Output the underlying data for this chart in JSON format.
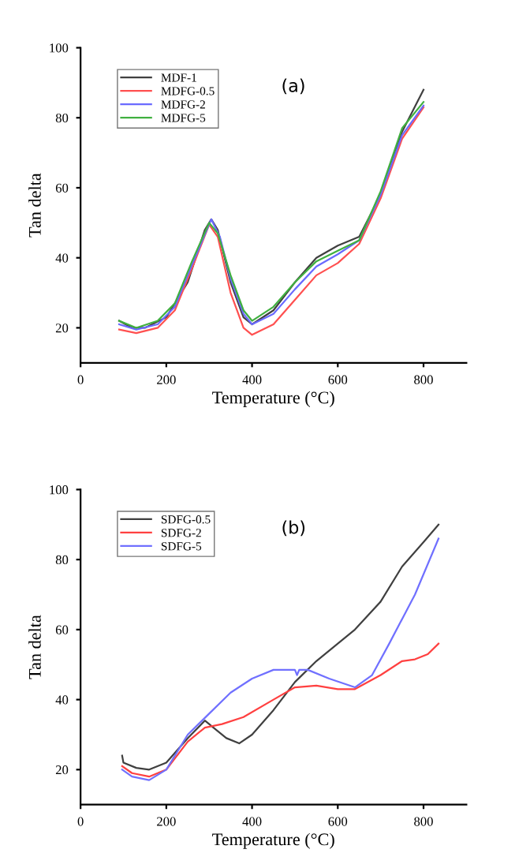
{
  "chart_data": [
    {
      "type": "line",
      "xlabel": "Temperature (°C)",
      "ylabel": "Tan delta",
      "annotations": [
        "(a)"
      ],
      "xlim": [
        0,
        900
      ],
      "ylim": [
        10,
        100
      ],
      "xticks": [
        0,
        200,
        400,
        600,
        800
      ],
      "yticks": [
        20,
        40,
        60,
        80,
        100
      ],
      "legend": "top left",
      "grid": false,
      "marker": "none",
      "line_style": "solid",
      "series": [
        {
          "name": "MDF-1",
          "color": "#404040",
          "x": [
            90,
            120,
            150,
            200,
            250,
            290,
            305,
            320,
            350,
            380,
            400,
            450,
            500,
            550,
            600,
            650,
            700,
            750,
            800
          ],
          "values": [
            22,
            20,
            20,
            23,
            33,
            48,
            51,
            48,
            33,
            23,
            21,
            25,
            33,
            40,
            43.5,
            46,
            58,
            76,
            88
          ]
        },
        {
          "name": "MDFG-0.5",
          "color": "#ff5050",
          "x": [
            90,
            130,
            180,
            220,
            260,
            300,
            320,
            350,
            380,
            400,
            450,
            500,
            550,
            600,
            650,
            700,
            750,
            800
          ],
          "values": [
            19.5,
            18.5,
            20,
            25,
            37,
            49.5,
            46,
            30,
            20,
            18,
            21,
            28,
            35,
            38.5,
            44,
            57,
            74,
            83
          ]
        },
        {
          "name": "MDFG-2",
          "color": "#6a6aff",
          "x": [
            90,
            130,
            180,
            220,
            260,
            305,
            325,
            350,
            380,
            400,
            450,
            500,
            550,
            600,
            650,
            700,
            750,
            800
          ],
          "values": [
            21,
            19.5,
            21,
            26,
            38,
            51,
            46,
            34,
            24,
            21,
            24,
            31,
            37.5,
            41,
            45,
            58,
            75,
            83.5
          ]
        },
        {
          "name": "MDFG-5",
          "color": "#40b040",
          "x": [
            90,
            130,
            180,
            220,
            260,
            300,
            320,
            350,
            380,
            400,
            450,
            500,
            550,
            600,
            650,
            700,
            750,
            800
          ],
          "values": [
            22,
            20,
            22,
            27,
            39,
            50,
            47,
            35,
            25,
            22,
            26,
            33,
            39,
            42,
            45,
            59,
            77,
            84.5
          ]
        }
      ]
    },
    {
      "type": "line",
      "xlabel": "Temperature (°C)",
      "ylabel": "Tan delta",
      "annotations": [
        "(b)"
      ],
      "xlim": [
        0,
        900
      ],
      "ylim": [
        10,
        100
      ],
      "xticks": [
        0,
        200,
        400,
        600,
        800
      ],
      "yticks": [
        20,
        40,
        60,
        80,
        100
      ],
      "legend": "top left",
      "grid": false,
      "marker": "none",
      "line_style": "solid",
      "series": [
        {
          "name": "SDFG-0.5",
          "color": "#404040",
          "x": [
            97,
            100,
            130,
            160,
            200,
            250,
            290,
            310,
            340,
            370,
            400,
            450,
            500,
            550,
            600,
            640,
            700,
            750,
            800,
            835
          ],
          "values": [
            24,
            22,
            20.5,
            20,
            22,
            29,
            34,
            32,
            29,
            27.5,
            30,
            37,
            45,
            51,
            56,
            60,
            68,
            78,
            85,
            90
          ]
        },
        {
          "name": "SDFG-2",
          "color": "#ff4040",
          "x": [
            97,
            120,
            160,
            200,
            250,
            290,
            330,
            380,
            450,
            500,
            550,
            600,
            640,
            700,
            750,
            780,
            810,
            835
          ],
          "values": [
            21,
            19,
            18,
            20,
            28,
            32,
            33,
            35,
            40,
            43.5,
            44,
            43,
            43,
            47,
            51,
            51.5,
            53,
            56
          ]
        },
        {
          "name": "SDFG-5",
          "color": "#7070ff",
          "x": [
            97,
            120,
            160,
            200,
            250,
            300,
            350,
            400,
            450,
            500,
            505,
            510,
            530,
            580,
            640,
            680,
            720,
            780,
            835
          ],
          "values": [
            20,
            18,
            17,
            20,
            30,
            36,
            42,
            46,
            48.5,
            48.5,
            47,
            48.5,
            48.5,
            46,
            43.5,
            47,
            56,
            70,
            86
          ]
        }
      ]
    }
  ]
}
